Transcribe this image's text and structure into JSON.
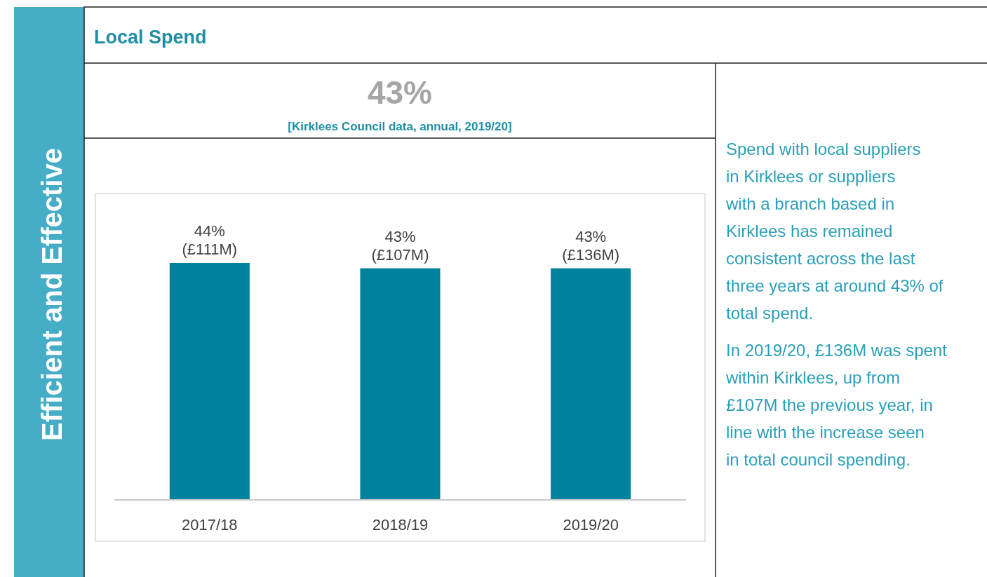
{
  "chart_data": {
    "type": "bar",
    "title": "43%",
    "subtitle": "[Kirklees Council data, annual, 2019/20]",
    "categories": [
      "2017/18",
      "2018/19",
      "2019/20"
    ],
    "values": [
      44,
      43,
      43
    ],
    "color": "#00829f",
    "value_labels": [
      "44%\n(£111M)",
      "43%\n(£107M)",
      "43%\n(£136M)"
    ],
    "annotations": [
      "Efficient and Effective",
      "Local Spend",
      "Spend with local suppliers in Kirklees or suppliers with a branch based in Kirklees has remained consistent across the last three years at around 43% of total spend.",
      "In 2019/20, £136M was spent within Kirklees, up from £107M the previous year, in line with the increase seen in total council spending."
    ]
  }
}
